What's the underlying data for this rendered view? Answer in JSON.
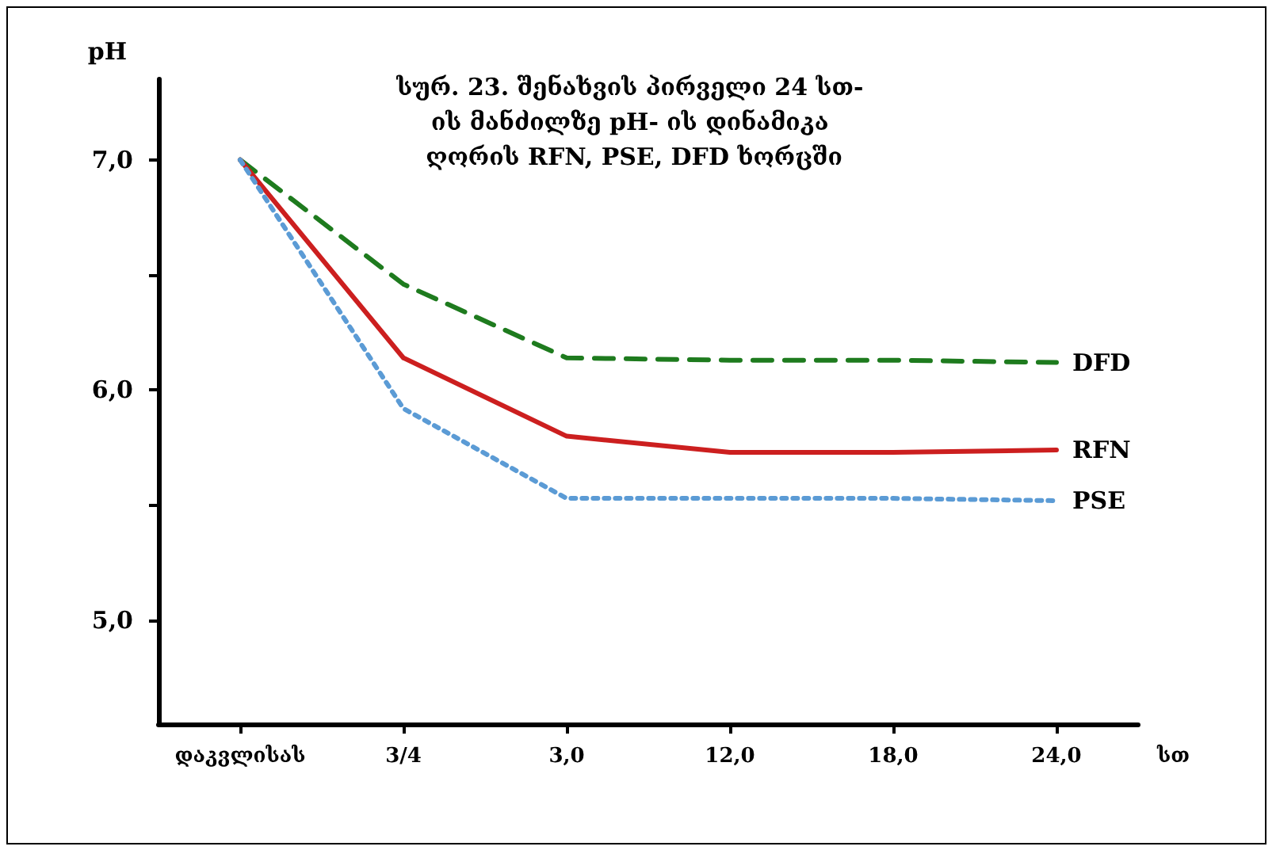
{
  "chart_data": {
    "type": "line",
    "title": "სურ. 23. შენახვის პირველი 24 სთ- ის მანძილზე pH- ის დინამიკა ღორის RFN, PSE, DFD ხორცში",
    "xlabel": "სთ",
    "ylabel": "pH",
    "categories": [
      "დაკვლისას",
      "3/4",
      "3,0",
      "12,0",
      "18,0",
      "24,0"
    ],
    "series": [
      {
        "name": "DFD",
        "color": "#1e7b1e",
        "line_style": "dashed",
        "values": [
          7.0,
          6.46,
          6.14,
          6.13,
          6.13,
          6.12
        ]
      },
      {
        "name": "RFN",
        "color": "#cc1f1f",
        "line_style": "solid",
        "values": [
          7.0,
          6.14,
          5.8,
          5.73,
          5.73,
          5.74
        ]
      },
      {
        "name": "PSE",
        "color": "#5b9bd5",
        "line_style": "dotted",
        "values": [
          7.0,
          5.92,
          5.53,
          5.53,
          5.53,
          5.52
        ]
      }
    ],
    "ylim": [
      4.55,
      7.35
    ],
    "yticks": [
      {
        "value": 5,
        "label": "5,0"
      },
      {
        "value": 5.5,
        "label": null
      },
      {
        "value": 6,
        "label": "6,0"
      },
      {
        "value": 6.5,
        "label": null
      },
      {
        "value": 7,
        "label": "7,0"
      }
    ],
    "grid": false,
    "legend": false,
    "marker": "none"
  }
}
